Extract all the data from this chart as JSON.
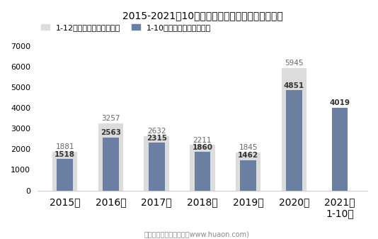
{
  "title": "2015-2021年10月大连商品交易所豆一期货成交量",
  "categories": [
    "2015年",
    "2016年",
    "2017年",
    "2018年",
    "2019年",
    "2020年",
    "2021年\n1-10月"
  ],
  "values_full": [
    1881,
    3257,
    2632,
    2211,
    1845,
    5945,
    null
  ],
  "values_oct": [
    1518,
    2563,
    2315,
    1860,
    1462,
    4851,
    4019
  ],
  "labels_full": [
    "1881",
    "3257",
    "2632",
    "2211",
    "1845",
    "5945",
    null
  ],
  "labels_oct": [
    "1518",
    "2563",
    "2315",
    "1860",
    "1462",
    "4851",
    "4019"
  ],
  "color_full": "#dcdcdc",
  "color_oct": "#6b7fa3",
  "legend_full": "1-12月期货成交量（万手）",
  "legend_oct": "1-10月期货成交量（万手）",
  "ylim": [
    0,
    7000
  ],
  "yticks": [
    0,
    1000,
    2000,
    3000,
    4000,
    5000,
    6000,
    7000
  ],
  "footnote": "制图：华经产业研究院（www.huaon.com)",
  "background_color": "#ffffff",
  "full_bar_width": 0.55,
  "oct_bar_width": 0.35,
  "title_fontsize": 11.5,
  "label_fontsize": 7.5,
  "legend_fontsize": 8,
  "tick_fontsize": 8,
  "footnote_fontsize": 7,
  "full_label_color": "#666666",
  "oct_label_color": "#333333"
}
